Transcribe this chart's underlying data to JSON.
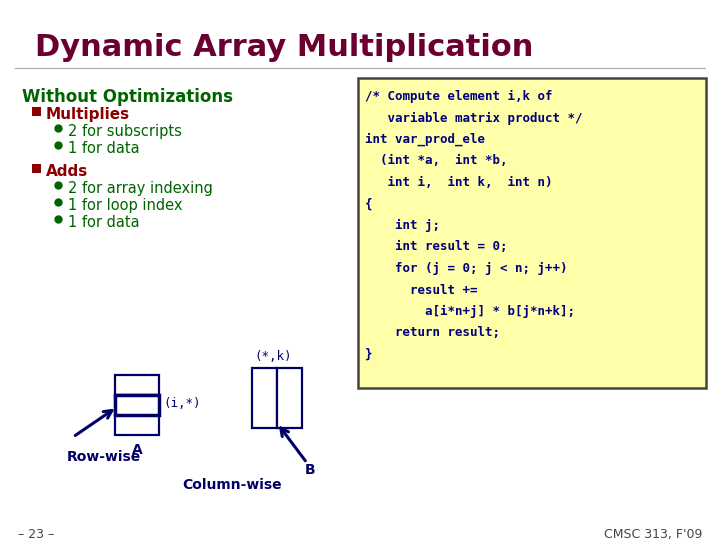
{
  "title": "Dynamic Array Multiplication",
  "title_color": "#6B0030",
  "section_heading": "Without Optimizations",
  "section_heading_color": "#006400",
  "bullet1_heading": "Multiplies",
  "bullet1_heading_color": "#8B0000",
  "bullet1_items": [
    "2 for subscripts",
    "1 for data"
  ],
  "bullet2_heading": "Adds",
  "bullet2_heading_color": "#8B0000",
  "bullet2_items": [
    "2 for array indexing",
    "1 for loop index",
    "1 for data"
  ],
  "bullet_dot_color": "#006400",
  "bullet_square_color": "#8B0000",
  "code_bg": "#FFFFAA",
  "code_border": "#444444",
  "code_text_color": "#000080",
  "code_lines": [
    "/* Compute element i,k of",
    "   variable matrix product */",
    "int var_prod_ele",
    "  (int *a,  int *b,",
    "   int i,  int k,  int n)",
    "{",
    "    int j;",
    "    int result = 0;",
    "    for (j = 0; j < n; j++)",
    "      result +=",
    "        a[i*n+j] * b[j*n+k];",
    "    return result;",
    "}"
  ],
  "footer_left": "– 23 –",
  "footer_right": "CMSC 313, F'09",
  "footer_color": "#444444",
  "label_rowwise": "Row-wise",
  "label_colwise": "Column-wise",
  "label_A": "A",
  "label_B": "B",
  "label_i_star": "(i,*)",
  "label_star_k": "(*,k)",
  "diagram_color": "#000066",
  "matrix_a_row_color": "#000066"
}
